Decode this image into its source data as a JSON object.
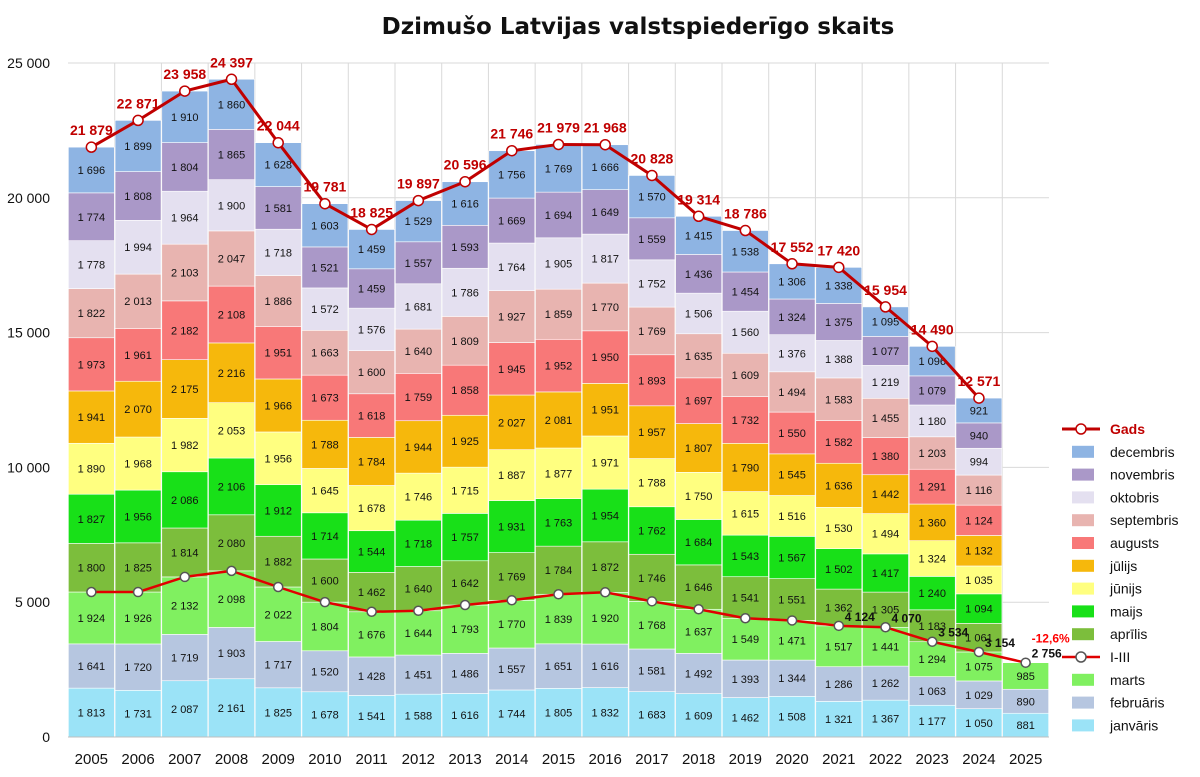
{
  "chart_data": {
    "type": "bar",
    "subtype": "stacked-with-lines",
    "title": "Dzimušo Latvijas valstspiederīgo skaits",
    "ylim": [
      0,
      25000
    ],
    "yticks": [
      0,
      5000,
      10000,
      15000,
      20000,
      25000
    ],
    "ytick_labels": [
      "0",
      "5 000",
      "10 000",
      "15 000",
      "20 000",
      "25 000"
    ],
    "grid": true,
    "legend_position": "right",
    "categories": [
      "2005",
      "2006",
      "2007",
      "2008",
      "2009",
      "2010",
      "2011",
      "2012",
      "2013",
      "2014",
      "2015",
      "2016",
      "2017",
      "2018",
      "2019",
      "2020",
      "2021",
      "2022",
      "2023",
      "2024",
      "2025"
    ],
    "series": [
      {
        "name": "janvāris",
        "color": "#9be3f7",
        "values": [
          1813,
          1731,
          2087,
          2161,
          1825,
          1678,
          1541,
          1588,
          1616,
          1744,
          1805,
          1832,
          1683,
          1609,
          1462,
          1508,
          1321,
          1367,
          1177,
          1050,
          881
        ],
        "labels": [
          "1 813",
          "1 731",
          "2 087",
          "2 161",
          "1 825",
          "1 678",
          "1 541",
          "1 588",
          "1 616",
          "1 744",
          "1 805",
          "1 832",
          "1 683",
          "1 609",
          "1 462",
          "1 508",
          "1 321",
          "1 367",
          "1 177",
          "1 050",
          "881"
        ]
      },
      {
        "name": "februāris",
        "color": "#b6c6e0",
        "values": [
          1641,
          1720,
          1719,
          1903,
          1717,
          1520,
          1428,
          1451,
          1486,
          1557,
          1651,
          1616,
          1581,
          1492,
          1393,
          1344,
          1286,
          1262,
          1063,
          1029,
          890
        ],
        "labels": [
          "1 641",
          "1 720",
          "1 719",
          "1 903",
          "1 717",
          "1 520",
          "1 428",
          "1 451",
          "1 486",
          "1 557",
          "1 651",
          "1 616",
          "1 581",
          "1 492",
          "1 393",
          "1 344",
          "1 286",
          "1 262",
          "1 063",
          "1 029",
          "890"
        ]
      },
      {
        "name": "marts",
        "color": "#80f060",
        "values": [
          1924,
          1926,
          2132,
          2098,
          2022,
          1804,
          1676,
          1644,
          1793,
          1770,
          1839,
          1920,
          1768,
          1637,
          1549,
          1471,
          1517,
          1441,
          1294,
          1075,
          985
        ],
        "labels": [
          "1 924",
          "1 926",
          "2 132",
          "2 098",
          "2 022",
          "1 804",
          "1 676",
          "1 644",
          "1 793",
          "1 770",
          "1 839",
          "1 920",
          "1 768",
          "1 637",
          "1 549",
          "1 471",
          "1 517",
          "1 441",
          "1 294",
          "1 075",
          "985"
        ]
      },
      {
        "name": "aprīlis",
        "color": "#7cbe3c",
        "values": [
          1800,
          1825,
          1814,
          2080,
          1882,
          1600,
          1462,
          1640,
          1642,
          1769,
          1784,
          1872,
          1746,
          1646,
          1541,
          1551,
          1362,
          1305,
          1183,
          1061,
          0
        ],
        "labels": [
          "1 800",
          "1 825",
          "1 814",
          "2 080",
          "1 882",
          "1 600",
          "1 462",
          "1 640",
          "1 642",
          "1 769",
          "1 784",
          "1 872",
          "1 746",
          "1 646",
          "1 541",
          "1 551",
          "1 362",
          "1 305",
          "1 183",
          "1 061",
          ""
        ]
      },
      {
        "name": "maijs",
        "color": "#18e018",
        "values": [
          1827,
          1956,
          2086,
          2106,
          1912,
          1714,
          1544,
          1718,
          1757,
          1931,
          1763,
          1954,
          1762,
          1684,
          1543,
          1567,
          1502,
          1417,
          1240,
          1094,
          0
        ],
        "labels": [
          "1 827",
          "1 956",
          "2 086",
          "2 106",
          "1 912",
          "1 714",
          "1 544",
          "1 718",
          "1 757",
          "1 931",
          "1 763",
          "1 954",
          "1 762",
          "1 684",
          "1 543",
          "1 567",
          "1 502",
          "1 417",
          "1 240",
          "1 094",
          ""
        ]
      },
      {
        "name": "jūnijs",
        "color": "#ffff80",
        "values": [
          1890,
          1968,
          1982,
          2053,
          1956,
          1645,
          1678,
          1746,
          1715,
          1887,
          1877,
          1971,
          1788,
          1750,
          1615,
          1516,
          1530,
          1494,
          1324,
          1035,
          0
        ],
        "labels": [
          "1 890",
          "1 968",
          "1 982",
          "2 053",
          "1 956",
          "1 645",
          "1 678",
          "1 746",
          "1 715",
          "1 887",
          "1 877",
          "1 971",
          "1 788",
          "1 750",
          "1 615",
          "1 516",
          "1 530",
          "1 494",
          "1 324",
          "1 035",
          ""
        ]
      },
      {
        "name": "jūlijs",
        "color": "#f6b80c",
        "values": [
          1941,
          2070,
          2175,
          2216,
          1966,
          1788,
          1784,
          1944,
          1925,
          2027,
          2081,
          1951,
          1957,
          1807,
          1790,
          1545,
          1636,
          1442,
          1360,
          1132,
          0
        ],
        "labels": [
          "1 941",
          "2 070",
          "2 175",
          "2 216",
          "1 966",
          "1 788",
          "1 784",
          "1 944",
          "1 925",
          "2 027",
          "2 081",
          "1 951",
          "1 957",
          "1 807",
          "1 790",
          "1 545",
          "1 636",
          "1 442",
          "1 360",
          "1 132",
          ""
        ]
      },
      {
        "name": "augusts",
        "color": "#f87878",
        "values": [
          1973,
          1961,
          2182,
          2108,
          1951,
          1673,
          1618,
          1759,
          1858,
          1945,
          1952,
          1950,
          1893,
          1697,
          1732,
          1550,
          1582,
          1380,
          1291,
          1124,
          0
        ],
        "labels": [
          "1 973",
          "1 961",
          "2 182",
          "2 108",
          "1 951",
          "1 673",
          "1 618",
          "1 759",
          "1 858",
          "1 945",
          "1 952",
          "1 950",
          "1 893",
          "1 697",
          "1 732",
          "1 550",
          "1 582",
          "1 380",
          "1 291",
          "1 124",
          ""
        ]
      },
      {
        "name": "septembris",
        "color": "#e8b4b0",
        "values": [
          1822,
          2013,
          2103,
          2047,
          1886,
          1663,
          1600,
          1640,
          1809,
          1927,
          1859,
          1770,
          1769,
          1635,
          1609,
          1494,
          1583,
          1455,
          1203,
          1116,
          0
        ],
        "labels": [
          "1 822",
          "2 013",
          "2 103",
          "2 047",
          "1 886",
          "1 663",
          "1 600",
          "1 640",
          "1 809",
          "1 927",
          "1 859",
          "1 770",
          "1 769",
          "1 635",
          "1 609",
          "1 494",
          "1 583",
          "1 455",
          "1 203",
          "1 116",
          ""
        ]
      },
      {
        "name": "oktobris",
        "color": "#e4e0f0",
        "values": [
          1778,
          1994,
          1964,
          1900,
          1718,
          1572,
          1576,
          1681,
          1786,
          1764,
          1905,
          1817,
          1752,
          1506,
          1560,
          1376,
          1388,
          1219,
          1180,
          994,
          0
        ],
        "labels": [
          "1 778",
          "1 994",
          "1 964",
          "1 900",
          "1 718",
          "1 572",
          "1 576",
          "1 681",
          "1 786",
          "1 764",
          "1 905",
          "1 817",
          "1 752",
          "1 506",
          "1 560",
          "1 376",
          "1 388",
          "1 219",
          "1 180",
          "994",
          ""
        ]
      },
      {
        "name": "novembris",
        "color": "#aa98c8",
        "values": [
          1774,
          1808,
          1804,
          1865,
          1581,
          1521,
          1459,
          1557,
          1593,
          1669,
          1694,
          1649,
          1559,
          1436,
          1454,
          1324,
          1375,
          1077,
          1079,
          940,
          0
        ],
        "labels": [
          "1 774",
          "1 808",
          "1 804",
          "1 865",
          "1 581",
          "1 521",
          "1 459",
          "1 557",
          "1 593",
          "1 669",
          "1 694",
          "1 649",
          "1 559",
          "1 436",
          "1 454",
          "1 324",
          "1 375",
          "1 077",
          "1 079",
          "940",
          ""
        ]
      },
      {
        "name": "decembris",
        "color": "#8eb4e3",
        "values": [
          1696,
          1899,
          1910,
          1860,
          1628,
          1603,
          1459,
          1529,
          1616,
          1756,
          1769,
          1666,
          1570,
          1415,
          1538,
          1306,
          1338,
          1095,
          1096,
          921,
          0
        ],
        "labels": [
          "1 696",
          "1 899",
          "1 910",
          "1 860",
          "1 628",
          "1 603",
          "1 459",
          "1 529",
          "1 616",
          "1 756",
          "1 769",
          "1 666",
          "1 570",
          "1 415",
          "1 538",
          "1 306",
          "1 338",
          "1 095",
          "1 096",
          "921",
          ""
        ]
      }
    ],
    "lines": [
      {
        "name": "Gads",
        "color": "#c00000",
        "values": [
          21879,
          22871,
          23958,
          24397,
          22044,
          19781,
          18825,
          19897,
          20596,
          21746,
          21979,
          21968,
          20828,
          19314,
          18786,
          17552,
          17420,
          15954,
          14490,
          12571,
          null
        ],
        "labels": [
          "21 879",
          "22 871",
          "23 958",
          "24 397",
          "22 044",
          "19 781",
          "18 825",
          "19 897",
          "20 596",
          "21 746",
          "21 979",
          "21 968",
          "20 828",
          "19 314",
          "18 786",
          "17 552",
          "17 420",
          "15 954",
          "14 490",
          "12 571",
          ""
        ]
      },
      {
        "name": "I-III",
        "color": "#e00000",
        "values": [
          5378,
          5377,
          5938,
          6162,
          5564,
          5002,
          4645,
          4683,
          4895,
          5071,
          5295,
          5368,
          5032,
          4738,
          4404,
          4323,
          4124,
          4070,
          3534,
          3154,
          2756
        ],
        "labels": [
          "",
          "",
          "",
          "",
          "",
          "",
          "",
          "",
          "",
          "",
          "",
          "",
          "",
          "",
          "",
          "",
          "4 124",
          "4 070",
          "3 534",
          "3 154",
          "2 756"
        ]
      }
    ],
    "annotations": [
      {
        "text": "-12,6%",
        "color": "#ff0000"
      }
    ],
    "legend": [
      "Gads",
      "decembris",
      "novembris",
      "oktobris",
      "septembris",
      "augusts",
      "jūlijs",
      "jūnijs",
      "maijs",
      "aprīlis",
      "I-III",
      "marts",
      "februāris",
      "janvāris"
    ]
  }
}
